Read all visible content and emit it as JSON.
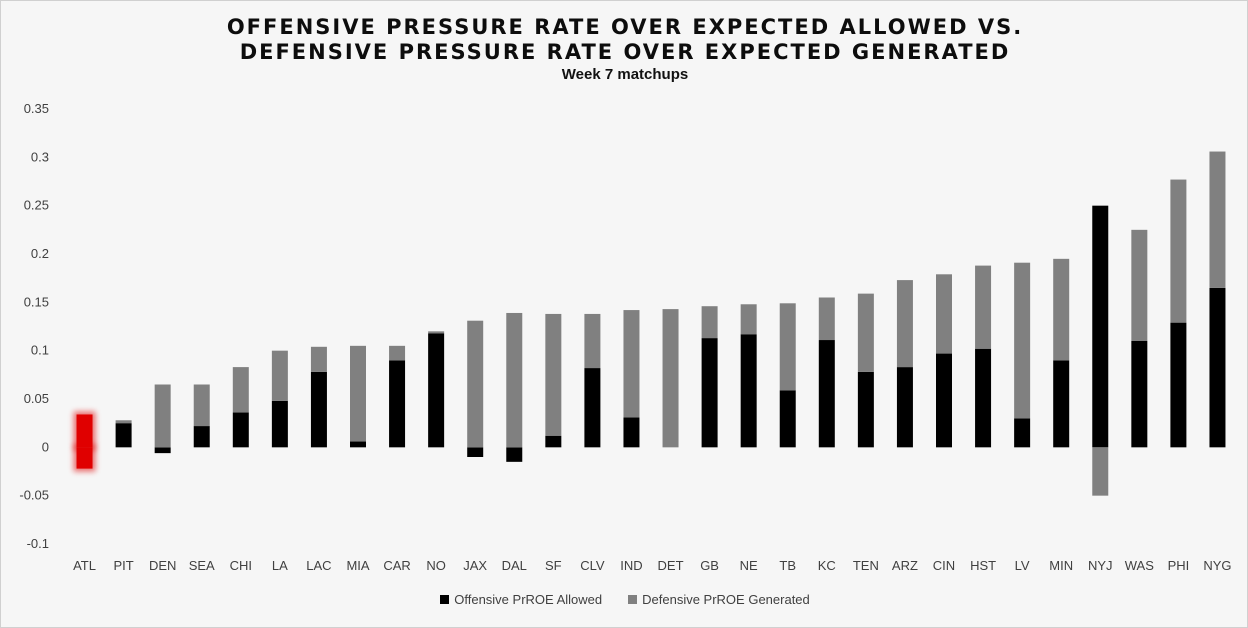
{
  "chart_data": {
    "type": "bar",
    "stacked": true,
    "title_line1": "OFFENSIVE PRESSURE RATE OVER EXPECTED ALLOWED VS.",
    "title_line2": "DEFENSIVE PRESSURE RATE OVER EXPECTED GENERATED",
    "subtitle": "Week 7 matchups",
    "categories": [
      "ATL",
      "PIT",
      "DEN",
      "SEA",
      "CHI",
      "LA",
      "LAC",
      "MIA",
      "CAR",
      "NO",
      "JAX",
      "DAL",
      "SF",
      "CLV",
      "IND",
      "DET",
      "GB",
      "NE",
      "TB",
      "KC",
      "TEN",
      "ARZ",
      "CIN",
      "HST",
      "LV",
      "MIN",
      "NYJ",
      "WAS",
      "PHI",
      "NYG"
    ],
    "series": [
      {
        "name": "Offensive PrROE Allowed",
        "color": "#000000",
        "values": [
          0.034,
          0.025,
          -0.006,
          0.022,
          0.036,
          0.048,
          0.078,
          0.006,
          0.09,
          0.118,
          -0.01,
          -0.015,
          0.012,
          0.082,
          0.031,
          0.0,
          0.113,
          0.117,
          0.059,
          0.111,
          0.078,
          0.083,
          0.097,
          0.102,
          0.03,
          0.09,
          0.25,
          0.11,
          0.129,
          0.165
        ]
      },
      {
        "name": "Defensive PrROE Generated",
        "color": "#808080",
        "values": [
          -0.022,
          0.003,
          0.065,
          0.043,
          0.047,
          0.052,
          0.026,
          0.099,
          0.015,
          0.002,
          0.131,
          0.139,
          0.126,
          0.056,
          0.111,
          0.143,
          0.033,
          0.031,
          0.09,
          0.044,
          0.081,
          0.09,
          0.082,
          0.086,
          0.161,
          0.105,
          -0.05,
          0.115,
          0.148,
          0.141
        ]
      }
    ],
    "highlight_category": "ATL",
    "highlight_color": "#e00000",
    "ylim": [
      -0.1,
      0.35
    ],
    "yticks": [
      "0.35",
      "0.3",
      "0.25",
      "0.2",
      "0.15",
      "0.1",
      "0.05",
      "0",
      "-0.05",
      "-0.1"
    ],
    "ytick_values": [
      0.35,
      0.3,
      0.25,
      0.2,
      0.15,
      0.1,
      0.05,
      0,
      -0.05,
      -0.1
    ],
    "legend_position": "bottom"
  }
}
